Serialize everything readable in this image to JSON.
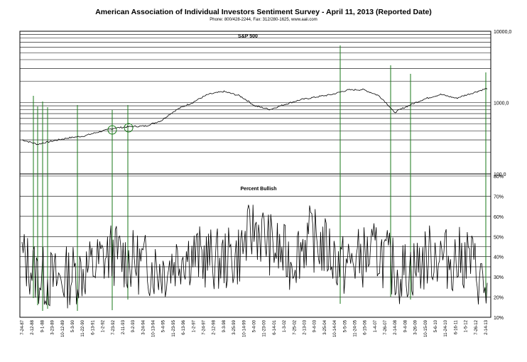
{
  "title": "American Association of Individual Investors Sentiment Survey - April 11, 2013 (Reported Date)",
  "subtitle": "Phone: 800/428-2244, Fax: 312/280-1625, www.aaii.com",
  "chart_data": [
    {
      "type": "line",
      "title": "S&P 500",
      "scale": "log",
      "ylim": [
        100,
        10000
      ],
      "ytick_labels": [
        "10000,0",
        "1000,0",
        "100,0"
      ],
      "grid": true,
      "series": [
        {
          "x": [
            "7-24-87",
            "1988",
            "1989",
            "1990",
            "1991",
            "1992",
            "1993",
            "1994",
            "1995",
            "1996",
            "1997",
            "1998",
            "1999",
            "2000",
            "2001",
            "2002",
            "2002-10",
            "2003",
            "2004",
            "2005",
            "2006",
            "2007",
            "2007-10",
            "2008",
            "2009-03",
            "2009-06",
            "2010",
            "2011",
            "2011-10",
            "2012",
            "2013-04"
          ],
          "y": [
            300,
            260,
            290,
            320,
            340,
            390,
            440,
            460,
            470,
            560,
            800,
            1000,
            1300,
            1430,
            1250,
            900,
            800,
            950,
            1100,
            1200,
            1300,
            1500,
            1520,
            1250,
            720,
            920,
            1130,
            1300,
            1150,
            1350,
            1580
          ]
        }
      ]
    },
    {
      "type": "line",
      "title": "Percent Bullish",
      "ylim": [
        10,
        80
      ],
      "ytick_labels": [
        "10%",
        "20%",
        "30%",
        "40%",
        "50%",
        "60%",
        "70%",
        "80%"
      ],
      "grid": true,
      "series": [
        {
          "x": [
            "7-24-87",
            "1988",
            "1989",
            "1990",
            "1991",
            "1992",
            "1993",
            "1994",
            "1995",
            "1996",
            "1997",
            "1998",
            "1999",
            "2000",
            "2001",
            "2002",
            "2003",
            "2004",
            "2005",
            "2006",
            "2007",
            "2008",
            "2009",
            "2010",
            "2011",
            "2012",
            "2013-04"
          ],
          "y": [
            40,
            30,
            28,
            32,
            35,
            42,
            38,
            36,
            34,
            42,
            40,
            38,
            40,
            55,
            45,
            38,
            50,
            44,
            35,
            40,
            42,
            32,
            35,
            42,
            38,
            40,
            22
          ]
        }
      ]
    }
  ],
  "x_tick_labels": [
    "7-24-87",
    "2-12-88",
    "9-1-88",
    "3-23-89",
    "10-12-89",
    "5-3-90",
    "11-22-90",
    "6-13-91",
    "1-2-92",
    "7-23-92",
    "2-11-93",
    "9-2-93",
    "3-24-94",
    "10-13-94",
    "5-4-95",
    "11-23-95",
    "6-13-96",
    "1-2-97",
    "7-24-97",
    "2-12-98",
    "9-3-98",
    "3-25-99",
    "10-14-99",
    "5-4-00",
    "11-23-00",
    "6-14-01",
    "1-3-02",
    "7-25-02",
    "2-13-03",
    "9-4-03",
    "3-25-04",
    "10-14-04",
    "5-5-05",
    "11-24-05",
    "6-15-06",
    "1-4-07",
    "7-26-07",
    "2-14-08",
    "9-4-08",
    "3-26-09",
    "10-15-09",
    "5-6-10",
    "11-24-10",
    "6-16-11",
    "1-5-12",
    "7-26-12",
    "2-14-13"
  ]
}
